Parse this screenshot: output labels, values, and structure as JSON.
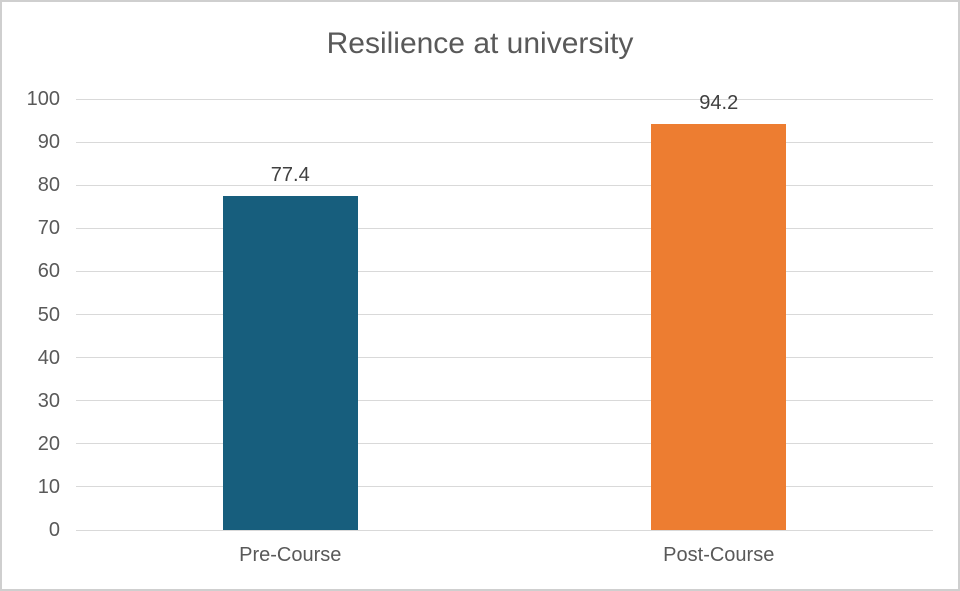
{
  "chart_data": {
    "type": "bar",
    "title": "Resilience at university",
    "categories": [
      "Pre-Course",
      "Post-Course"
    ],
    "values": [
      77.4,
      94.2
    ],
    "data_labels": [
      "77.4",
      "94.2"
    ],
    "bar_colors": [
      "#175e7d",
      "#ed7d31"
    ],
    "xlabel": "",
    "ylabel": "",
    "ylim": [
      0,
      100
    ],
    "yticks": [
      0,
      10,
      20,
      30,
      40,
      50,
      60,
      70,
      80,
      90,
      100
    ],
    "grid": true,
    "gridline_color": "#d9d9d9",
    "legend": false,
    "title_color": "#595959",
    "axis_label_color": "#595959",
    "data_label_color": "#404040",
    "border_color": "#cfcfcf",
    "background_color": "#ffffff"
  }
}
